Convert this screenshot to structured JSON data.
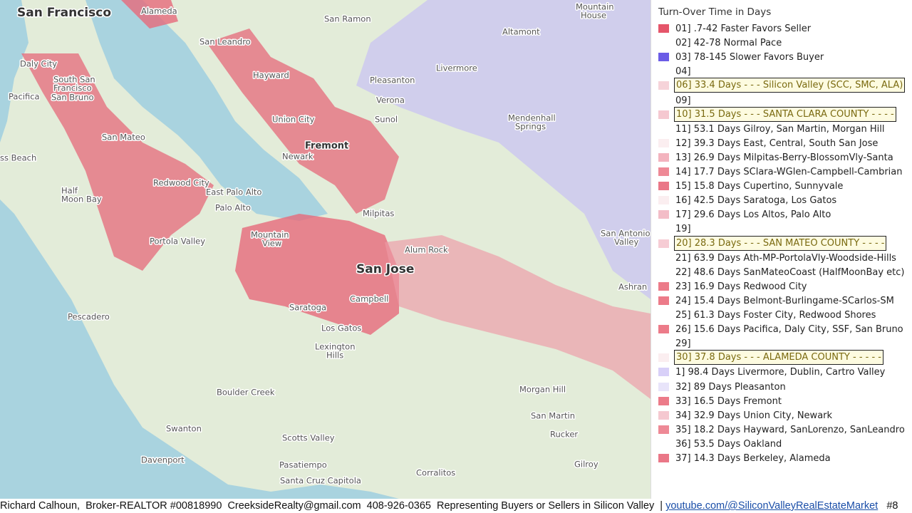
{
  "map": {
    "labels": [
      "San Francisco",
      "Alameda",
      "San Ramon",
      "Mountain",
      "House",
      "Daly City",
      "South San",
      "Francisco",
      "San Bruno",
      "Pacifica",
      "San Leandro",
      "Altamont",
      "Livermore",
      "Pleasanton",
      "Hayward",
      "Verona",
      "Union City",
      "Sunol",
      "Mendenhall",
      "Springs",
      "San Mateo",
      "Fremont",
      "Newark",
      "ss Beach",
      "Redwood City",
      "East Palo Alto",
      "Half",
      "Moon Bay",
      "Palo Alto",
      "Milpitas",
      "Portola Valley",
      "Mountain",
      "View",
      "San Antonio",
      "Valley",
      "Alum Rock",
      "San Jose",
      "Ashran",
      "Saratoga",
      "Campbell",
      "Los Gatos",
      "Pescadero",
      "Lexington",
      "Hills",
      "Boulder Creek",
      "Morgan Hill",
      "Swanton",
      "San Martin",
      "Scotts Valley",
      "Rucker",
      "Davenport",
      "Pasatiempo",
      "Gilroy",
      "Santa Cruz Capitola",
      "Corralitos"
    ]
  },
  "legend": {
    "title": "Turn-Over Time in Days",
    "items": [
      {
        "label": "01] .7-42 Faster Favors Seller",
        "color": "#e5556a"
      },
      {
        "label": "02] 42-78 Normal Pace"
      },
      {
        "label": "03] 78-145 Slower Favors Buyer",
        "color": "#6b5ce6"
      },
      {
        "label": "04]"
      },
      {
        "label": "06] 33.4 Days - - - Silicon Valley (SCC, SMC, ALA)",
        "color": "#f6d3d9",
        "highlight": true
      },
      {
        "label": "09]"
      },
      {
        "label": "10] 31.5 Days - - - SANTA CLARA COUNTY - - - -",
        "color": "#f5c8d0",
        "highlight": true
      },
      {
        "label": "11] 53.1 Days Gilroy, San Martin, Morgan Hill"
      },
      {
        "label": "12] 39.3 Days East, Central, South San Jose",
        "color": "#fbeef0"
      },
      {
        "label": "13] 26.9 Days Milpitas-Berry-BlossomVly-Santa",
        "color": "#f3b3be"
      },
      {
        "label": "14] 17.7 Days SClara-WGlen-Campbell-Cambrian",
        "color": "#ee8996"
      },
      {
        "label": "15] 15.8 Days Cupertino, Sunnyvale",
        "color": "#ea7787"
      },
      {
        "label": "16] 42.5 Days Saratoga, Los Gatos",
        "color": "#fbeef0"
      },
      {
        "label": "17] 29.6 Days Los Altos, Palo Alto",
        "color": "#f3bdc7"
      },
      {
        "label": "19]"
      },
      {
        "label": "20] 28.3 Days - - - SAN MATEO COUNTY - - - -",
        "color": "#f6ccd4",
        "highlight": true
      },
      {
        "label": "21] 63.9 Days Ath-MP-PortolaVly-Woodside-Hills"
      },
      {
        "label": "22] 48.6 Days SanMateoCoast (HalfMoonBay etc)"
      },
      {
        "label": "23] 16.9 Days Redwood City",
        "color": "#ec7b89"
      },
      {
        "label": "24] 15.4 Days Belmont-Burlingame-SCarlos-SM",
        "color": "#ec7b89"
      },
      {
        "label": "25] 61.3 Days Foster City, Redwood Shores"
      },
      {
        "label": "26] 15.6 Days Pacifica, Daly City, SSF, San Bruno",
        "color": "#ec7b89"
      },
      {
        "label": "29]"
      },
      {
        "label": "30] 37.8 Days - - - ALAMEDA COUNTY - - - - -",
        "color": "#fbeef0",
        "highlight": true
      },
      {
        "label": "1] 98.4 Days Livermore, Dublin, Cartro Valley",
        "color": "#d8d0f8"
      },
      {
        "label": "32] 89 Days Pleasanton",
        "color": "#e8e4fa"
      },
      {
        "label": "33] 16.5 Days Fremont",
        "color": "#ec7b89"
      },
      {
        "label": "34] 32.9 Days Union City, Newark",
        "color": "#f5c8d0"
      },
      {
        "label": "35] 18.2 Days Hayward, SanLorenzo, SanLeandro",
        "color": "#ee8996"
      },
      {
        "label": "36] 53.5 Days Oakland"
      },
      {
        "label": "37] 14.3 Days Berkeley, Alameda",
        "color": "#ea7787"
      }
    ]
  },
  "footer": {
    "text": "Richard Calhoun,  Broker-REALTOR #00818990  CreeksideRealty@gmail.com  408-926-0365  Representing Buyers or Sellers in Silicon Valley  |",
    "link": "youtube.com/@SiliconValleyRealEstateMarket",
    "page": "#8"
  }
}
